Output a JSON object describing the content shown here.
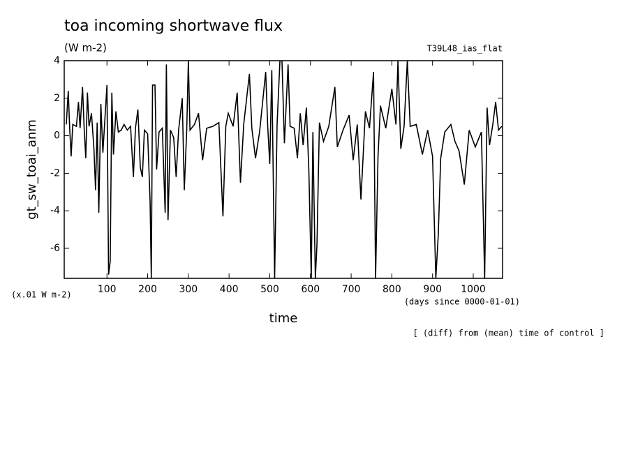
{
  "chart_data": {
    "type": "line",
    "title": "toa incoming shortwave flux",
    "subtitle": "(W m-2)",
    "experiment": "T39L48_ias_flat",
    "y_label": "gt_sw_toai_anm",
    "y_units": "(x.01 W m-2)",
    "x_label": "time",
    "x_units": "(days since 0000-01-01)",
    "note": "[ (diff) from (mean) time of control ]",
    "xlim": [
      -5,
      1072
    ],
    "ylim": [
      -7.6,
      4
    ],
    "xticks": [
      100,
      200,
      300,
      400,
      500,
      600,
      700,
      800,
      900,
      1000
    ],
    "yticks": [
      -6,
      -4,
      -2,
      0,
      2,
      4
    ],
    "x": [
      0,
      5,
      8,
      12,
      16,
      25,
      30,
      34,
      40,
      44,
      48,
      52,
      56,
      62,
      68,
      72,
      76,
      80,
      85,
      90,
      100,
      104,
      108,
      112,
      116,
      122,
      128,
      135,
      142,
      150,
      158,
      165,
      170,
      176,
      182,
      187,
      192,
      200,
      206,
      209,
      212,
      218,
      222,
      228,
      236,
      243,
      246,
      250,
      256,
      264,
      270,
      276,
      285,
      290,
      296,
      300,
      304,
      315,
      325,
      335,
      345,
      360,
      375,
      385,
      392,
      398,
      410,
      420,
      428,
      436,
      450,
      456,
      465,
      475,
      490,
      495,
      500,
      505,
      512,
      518,
      525,
      530,
      536,
      545,
      550,
      560,
      568,
      575,
      582,
      590,
      596,
      602,
      606,
      612,
      616,
      622,
      632,
      645,
      660,
      666,
      680,
      695,
      705,
      715,
      724,
      735,
      745,
      755,
      760,
      766,
      772,
      785,
      800,
      810,
      815,
      822,
      830,
      838,
      845,
      860,
      875,
      888,
      900,
      908,
      914,
      920,
      930,
      945,
      955,
      965,
      978,
      990,
      1005,
      1020,
      1028,
      1034,
      1040,
      1048,
      1055,
      1062,
      1070
    ],
    "series": [
      {
        "color": "#000000",
        "values": [
          0.6,
          2.4,
          0.6,
          -1.1,
          0.6,
          0.5,
          1.8,
          0.4,
          2.6,
          0.4,
          -1.2,
          2.3,
          0.5,
          1.2,
          -0.7,
          -2.9,
          0.7,
          -4.1,
          1.7,
          -0.9,
          2.7,
          -7.4,
          -6.7,
          2.3,
          -1.0,
          1.3,
          0.2,
          0.3,
          0.6,
          0.3,
          0.5,
          -2.2,
          0.4,
          1.4,
          -1.7,
          -2.2,
          0.3,
          0.1,
          -3.5,
          -7.6,
          2.7,
          2.7,
          -1.8,
          0.2,
          0.4,
          -4.1,
          3.8,
          -4.5,
          0.3,
          -0.1,
          -2.2,
          0.3,
          2.0,
          -2.9,
          0.3,
          4.0,
          0.3,
          0.6,
          1.2,
          -1.3,
          0.4,
          0.5,
          0.7,
          -4.3,
          0.5,
          1.2,
          0.5,
          2.3,
          -2.5,
          0.6,
          3.3,
          0.4,
          -1.2,
          0.2,
          3.4,
          0.5,
          -1.5,
          3.5,
          -7.6,
          0.6,
          4.0,
          4.0,
          -0.4,
          3.8,
          0.5,
          0.4,
          -1.2,
          1.2,
          -0.5,
          1.5,
          -1.8,
          -7.6,
          0.2,
          -7.6,
          -5.8,
          0.7,
          -0.3,
          0.5,
          2.6,
          -0.6,
          0.3,
          1.1,
          -1.3,
          0.6,
          -3.4,
          1.3,
          0.4,
          3.4,
          -7.6,
          -1.1,
          1.6,
          0.4,
          2.5,
          0.6,
          4.0,
          -0.7,
          0.5,
          4.0,
          0.5,
          0.6,
          -1.0,
          0.3,
          -1.1,
          -7.6,
          -5.3,
          -1.2,
          0.2,
          0.6,
          -0.3,
          -0.8,
          -2.6,
          0.3,
          -0.6,
          0.2,
          -7.6,
          1.5,
          -0.5,
          0.6,
          1.8,
          0.3,
          0.5
        ]
      }
    ]
  }
}
